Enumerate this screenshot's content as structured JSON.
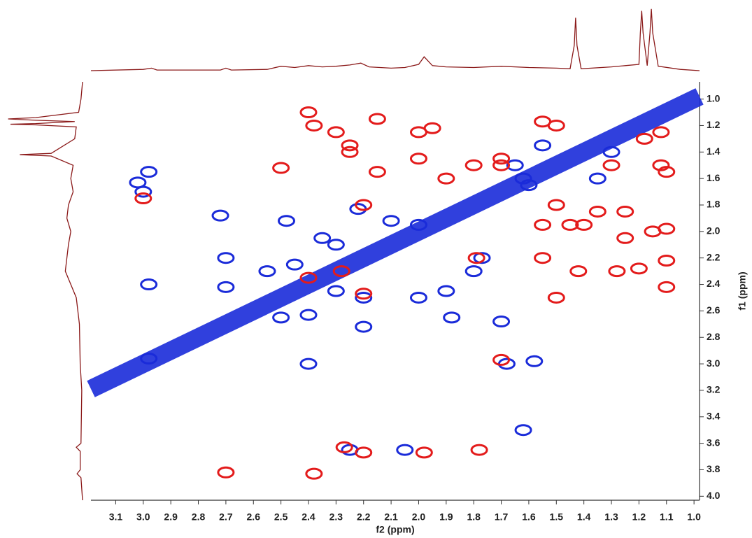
{
  "chart_data": {
    "type": "contour",
    "x_label": "f2 (ppm)",
    "y_label": "f1 (ppm)",
    "xlim": [
      3.19,
      0.98
    ],
    "ylim": [
      0.87,
      4.03
    ],
    "xticks": [
      3.1,
      {
        "value": 3,
        "label": "3.0"
      },
      2.9,
      2.8,
      2.7,
      2.6,
      2.5,
      2.4,
      2.3,
      2.2,
      2.1,
      {
        "value": 2,
        "label": "2.0"
      },
      1.9,
      1.8,
      1.7,
      1.6,
      1.5,
      1.4,
      1.3,
      1.2,
      1.1,
      {
        "value": 1,
        "label": "1.0"
      }
    ],
    "yticks": [
      {
        "value": 1,
        "label": "1.0"
      },
      1.2,
      1.4,
      1.6,
      1.8,
      {
        "value": 2,
        "label": "2.0"
      },
      2.2,
      2.4,
      2.6,
      2.8,
      {
        "value": 3,
        "label": "3.0"
      },
      3.2,
      3.4,
      3.6,
      3.8,
      {
        "value": 4,
        "label": "4.0"
      }
    ],
    "series": [
      {
        "type": "line",
        "color": "#1a2bd9",
        "x": [
          3.19,
          0.98
        ],
        "values": [
          3.19,
          0.98
        ]
      },
      {
        "type": "peak",
        "color": "#1a2bd9",
        "x": [
          2.98,
          3.0,
          3.02,
          2.72,
          2.7,
          2.7,
          2.98,
          2.48,
          2.45,
          2.55,
          2.35,
          2.3,
          2.1,
          2.0,
          2.4,
          2.5,
          2.2,
          2.2,
          2.0,
          1.9,
          1.88,
          1.7,
          2.4,
          1.68,
          1.77,
          1.65,
          1.62,
          1.55,
          1.3,
          1.6,
          1.35,
          2.22,
          2.25,
          2.05,
          1.62,
          1.58,
          2.98,
          2.3,
          1.8
        ],
        "values": [
          1.55,
          1.7,
          1.63,
          1.88,
          2.2,
          2.42,
          2.4,
          1.92,
          2.25,
          2.3,
          2.05,
          2.1,
          1.92,
          1.95,
          2.63,
          2.65,
          2.72,
          2.5,
          2.5,
          2.45,
          2.65,
          2.68,
          3.0,
          3.0,
          2.2,
          1.5,
          1.6,
          1.35,
          1.4,
          1.65,
          1.6,
          1.83,
          3.65,
          3.65,
          3.5,
          2.98,
          2.96,
          2.45,
          2.3
        ]
      },
      {
        "type": "peak",
        "color": "#e31b1b",
        "x": [
          2.4,
          2.38,
          2.3,
          2.25,
          2.15,
          2.0,
          1.95,
          2.0,
          2.15,
          2.5,
          2.25,
          1.9,
          1.8,
          2.2,
          1.79,
          2.4,
          2.2,
          1.5,
          1.55,
          1.45,
          1.4,
          1.35,
          1.25,
          1.25,
          1.15,
          1.1,
          1.55,
          1.42,
          1.28,
          1.2,
          1.1,
          1.1,
          1.5,
          1.12,
          1.1,
          1.3,
          1.12,
          1.18,
          1.5,
          1.55,
          1.7,
          1.7,
          2.7,
          2.38,
          2.2,
          1.98,
          1.78,
          2.27,
          3.0,
          2.28,
          1.7
        ],
        "values": [
          1.1,
          1.2,
          1.25,
          1.4,
          1.15,
          1.25,
          1.22,
          1.45,
          1.55,
          1.52,
          1.35,
          1.6,
          1.5,
          1.8,
          2.2,
          2.35,
          2.47,
          1.8,
          1.95,
          1.95,
          1.95,
          1.85,
          1.85,
          2.05,
          2.0,
          1.98,
          2.2,
          2.3,
          2.3,
          2.28,
          2.22,
          2.42,
          2.5,
          1.5,
          1.55,
          1.5,
          1.25,
          1.3,
          1.2,
          1.17,
          1.5,
          2.97,
          3.82,
          3.83,
          3.67,
          3.67,
          3.65,
          3.63,
          1.75,
          2.3,
          1.45
        ]
      }
    ],
    "top_projection": {
      "color": "#8b1a1a",
      "x": [
        3.19,
        3.0,
        2.97,
        2.95,
        2.72,
        2.7,
        2.68,
        2.55,
        2.5,
        2.45,
        2.4,
        2.35,
        2.3,
        2.25,
        2.21,
        2.18,
        2.1,
        2.05,
        2.0,
        1.98,
        1.95,
        1.9,
        1.8,
        1.7,
        1.6,
        1.5,
        1.45,
        1.435,
        1.43,
        1.425,
        1.41,
        1.3,
        1.25,
        1.2,
        1.195,
        1.19,
        1.185,
        1.17,
        1.16,
        1.155,
        1.15,
        1.13,
        1.05,
        0.98
      ],
      "values": [
        0,
        2,
        4,
        1,
        1,
        4,
        1,
        2,
        7,
        5,
        8,
        6,
        7,
        9,
        12,
        6,
        4,
        5,
        10,
        22,
        8,
        6,
        5,
        7,
        5,
        4,
        3,
        40,
        84,
        40,
        3,
        6,
        8,
        10,
        60,
        95,
        60,
        8,
        60,
        98,
        60,
        7,
        2,
        0
      ]
    },
    "left_projection": {
      "color": "#8b1a1a",
      "y": [
        0.87,
        1.0,
        1.1,
        1.14,
        1.15,
        1.16,
        1.17,
        1.185,
        1.19,
        1.195,
        1.21,
        1.3,
        1.41,
        1.42,
        1.43,
        1.5,
        1.6,
        1.7,
        1.8,
        1.9,
        2.0,
        2.1,
        2.2,
        2.3,
        2.4,
        2.5,
        2.7,
        3.0,
        3.2,
        3.6,
        3.63,
        3.66,
        3.8,
        3.83,
        3.86,
        4.03
      ],
      "values": [
        0,
        2,
        5,
        60,
        95,
        60,
        10,
        60,
        92,
        60,
        8,
        10,
        40,
        80,
        40,
        12,
        15,
        12,
        18,
        20,
        15,
        18,
        20,
        22,
        15,
        8,
        4,
        3,
        1,
        2,
        8,
        3,
        3,
        7,
        2,
        0
      ]
    }
  }
}
